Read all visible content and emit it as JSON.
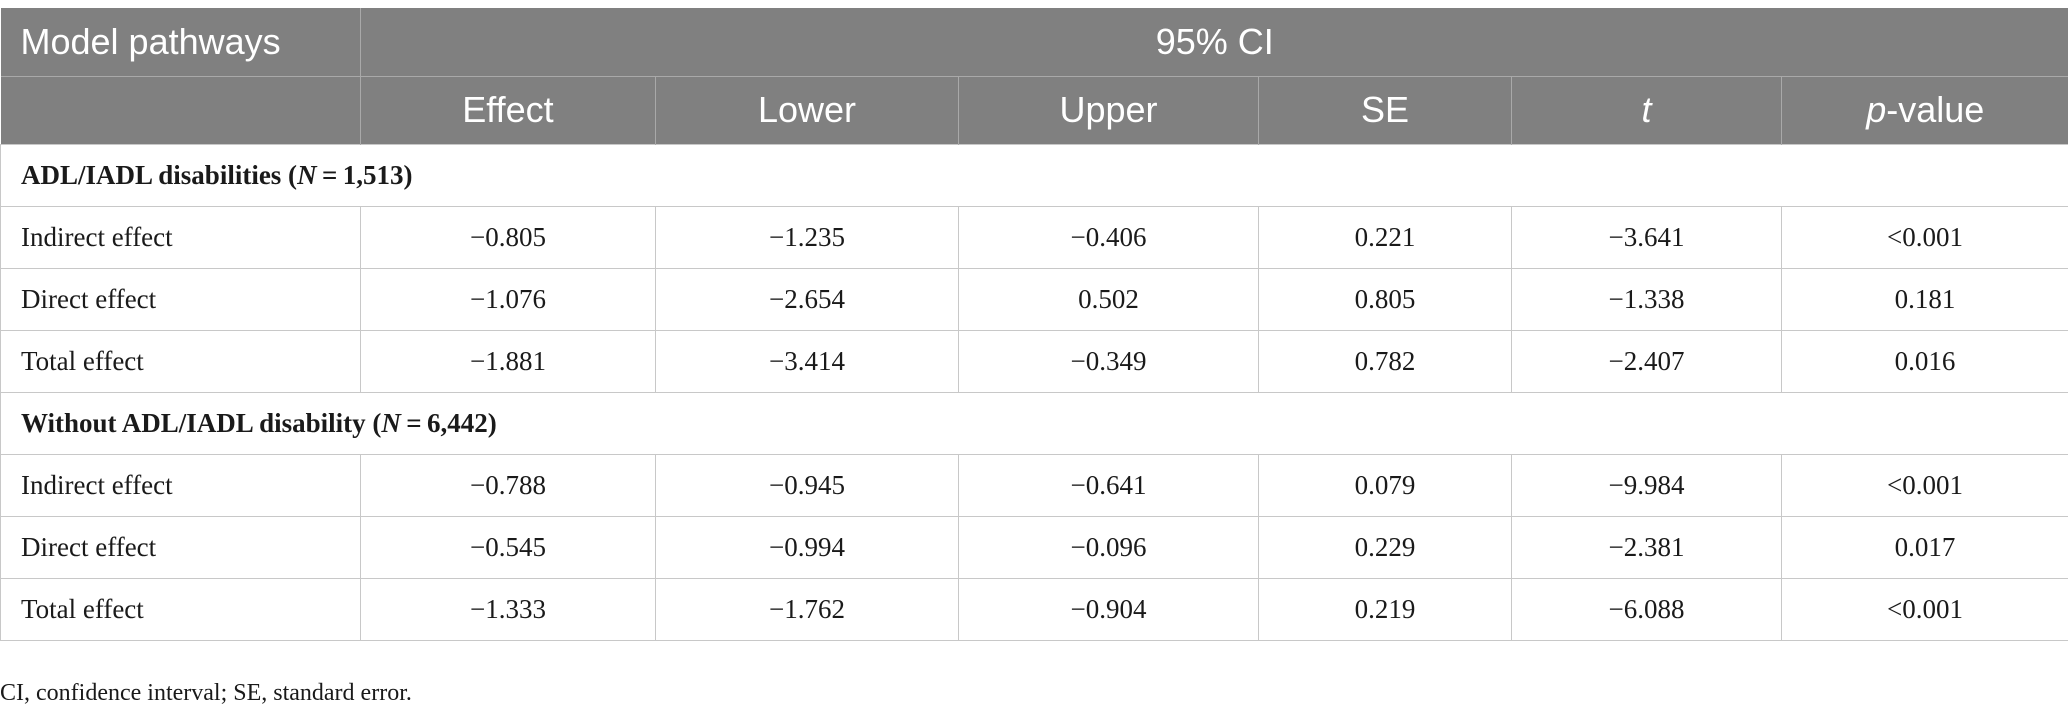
{
  "header": {
    "col0": "Model pathways",
    "ci_label": "95% CI",
    "columns": [
      "Effect",
      "Lower",
      "Upper",
      "SE",
      "t",
      "p",
      "-value"
    ]
  },
  "sections": [
    {
      "title_pre": "ADL/IADL disabilities (",
      "title_n": "N",
      "title_post": " = 1,513)",
      "rows": [
        {
          "label": "Indirect effect",
          "effect": "−0.805",
          "lower": "−1.235",
          "upper": "−0.406",
          "se": "0.221",
          "t": "−3.641",
          "p": "<0.001"
        },
        {
          "label": "Direct effect",
          "effect": "−1.076",
          "lower": "−2.654",
          "upper": "0.502",
          "se": "0.805",
          "t": "−1.338",
          "p": "0.181"
        },
        {
          "label": "Total effect",
          "effect": "−1.881",
          "lower": "−3.414",
          "upper": "−0.349",
          "se": "0.782",
          "t": "−2.407",
          "p": "0.016"
        }
      ]
    },
    {
      "title_pre": "Without ADL/IADL disability (",
      "title_n": "N",
      "title_post": " = 6,442)",
      "rows": [
        {
          "label": "Indirect effect",
          "effect": "−0.788",
          "lower": "−0.945",
          "upper": "−0.641",
          "se": "0.079",
          "t": "−9.984",
          "p": "<0.001"
        },
        {
          "label": "Direct effect",
          "effect": "−0.545",
          "lower": "−0.994",
          "upper": "−0.096",
          "se": "0.229",
          "t": "−2.381",
          "p": "0.017"
        },
        {
          "label": "Total effect",
          "effect": "−1.333",
          "lower": "−1.762",
          "upper": "−0.904",
          "se": "0.219",
          "t": "−6.088",
          "p": "<0.001"
        }
      ]
    }
  ],
  "footnote": "CI, confidence interval; SE, standard error."
}
